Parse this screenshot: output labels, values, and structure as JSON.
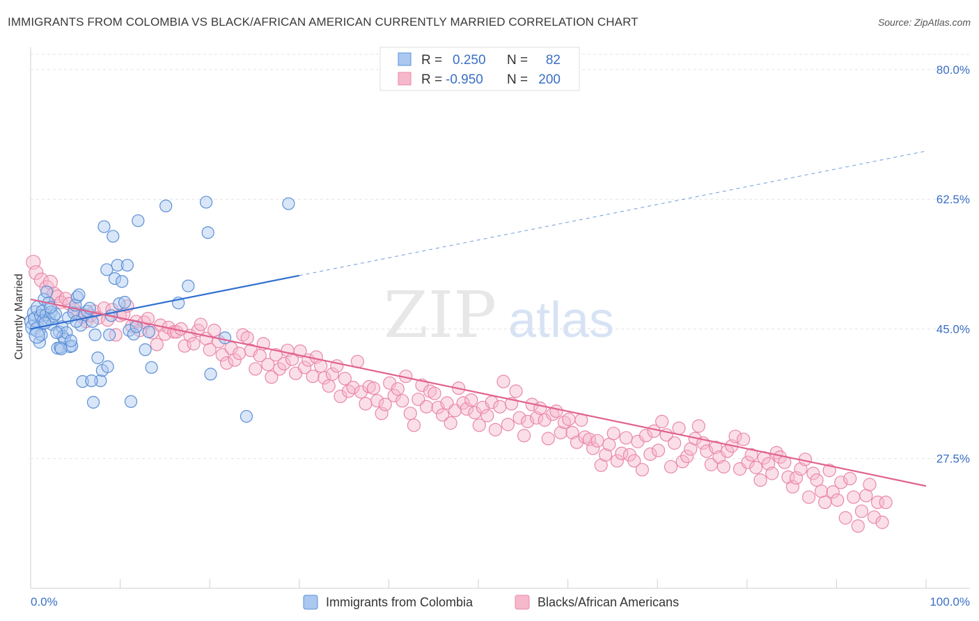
{
  "header": {
    "title": "IMMIGRANTS FROM COLOMBIA VS BLACK/AFRICAN AMERICAN CURRENTLY MARRIED CORRELATION CHART",
    "source": "Source: ZipAtlas.com"
  },
  "watermark": {
    "zip": "ZIP",
    "atlas": "atlas"
  },
  "legend": {
    "r_label": "R =",
    "n_label": "N =",
    "rows": [
      {
        "r": "0.250",
        "n": "82"
      },
      {
        "r": "-0.950",
        "n": "200"
      }
    ]
  },
  "bottom_legend": [
    "Immigrants from Colombia",
    "Blacks/African Americans"
  ],
  "colors": {
    "blue_fill": "#aac8f0",
    "blue_stroke": "#5b8fd6",
    "blue_line": "#2f6fd0",
    "pink_fill": "#f6b8cb",
    "pink_stroke": "#e987a8",
    "pink_line": "#e0628e"
  },
  "chart_data": {
    "type": "scatter",
    "title": "IMMIGRANTS FROM COLOMBIA VS BLACK/AFRICAN AMERICAN CURRENTLY MARRIED CORRELATION CHART",
    "xlabel": "",
    "ylabel": "Currently Married",
    "x_tick_labels": [
      "0.0%",
      "100.0%"
    ],
    "y_tick_labels": [
      "80.0%",
      "62.5%",
      "45.0%",
      "27.5%"
    ],
    "y_ticks": [
      80.0,
      62.5,
      45.0,
      27.5
    ],
    "xlim": [
      0,
      100
    ],
    "ylim": [
      10,
      83
    ],
    "grid": true,
    "legend_position": "top-center",
    "series": [
      {
        "name": "Immigrants from Colombia",
        "r": 0.25,
        "n": 82,
        "trend": {
          "x0": 0,
          "y0": 45.0,
          "x1": 30,
          "y1": 52.2,
          "dashed_to_x": 100,
          "dashed_to_y": 69.0
        },
        "points": [
          [
            0.2,
            46
          ],
          [
            0.3,
            45.2
          ],
          [
            0.5,
            47.1
          ],
          [
            0.6,
            46.3
          ],
          [
            0.8,
            44.9
          ],
          [
            0.9,
            47.8
          ],
          [
            1.0,
            43.2
          ],
          [
            1.1,
            46.8
          ],
          [
            1.2,
            44.2
          ],
          [
            1.3,
            47.4
          ],
          [
            1.4,
            46.1
          ],
          [
            1.5,
            49.0
          ],
          [
            1.7,
            46.9
          ],
          [
            1.8,
            50.0
          ],
          [
            2.0,
            48.5
          ],
          [
            2.1,
            46.4
          ],
          [
            2.3,
            47.3
          ],
          [
            2.4,
            45.6
          ],
          [
            2.6,
            46.7
          ],
          [
            2.8,
            47.0
          ],
          [
            3.0,
            42.4
          ],
          [
            3.2,
            44.6
          ],
          [
            3.3,
            42.5
          ],
          [
            3.5,
            45.3
          ],
          [
            3.6,
            44.0
          ],
          [
            3.8,
            43.6
          ],
          [
            4.0,
            44.5
          ],
          [
            4.2,
            46.5
          ],
          [
            4.4,
            42.6
          ],
          [
            4.6,
            42.7
          ],
          [
            4.8,
            47.2
          ],
          [
            5.0,
            48.2
          ],
          [
            5.2,
            49.3
          ],
          [
            5.4,
            49.6
          ],
          [
            5.6,
            45.5
          ],
          [
            5.8,
            37.9
          ],
          [
            6.0,
            46.9
          ],
          [
            6.3,
            47.4
          ],
          [
            6.6,
            47.8
          ],
          [
            6.9,
            46.0
          ],
          [
            7.2,
            44.2
          ],
          [
            7.5,
            41.1
          ],
          [
            7.8,
            38.0
          ],
          [
            8.0,
            39.4
          ],
          [
            8.2,
            58.8
          ],
          [
            8.5,
            53.0
          ],
          [
            8.8,
            44.2
          ],
          [
            9.0,
            46.8
          ],
          [
            9.2,
            57.5
          ],
          [
            9.4,
            51.8
          ],
          [
            9.7,
            53.6
          ],
          [
            9.9,
            48.4
          ],
          [
            10.2,
            51.4
          ],
          [
            10.5,
            48.6
          ],
          [
            10.8,
            53.6
          ],
          [
            11.0,
            44.8
          ],
          [
            11.2,
            35.2
          ],
          [
            11.5,
            44.3
          ],
          [
            12.0,
            59.6
          ],
          [
            12.8,
            42.2
          ],
          [
            13.5,
            39.8
          ],
          [
            15.1,
            61.6
          ],
          [
            16.5,
            48.5
          ],
          [
            17.6,
            50.8
          ],
          [
            19.6,
            62.1
          ],
          [
            19.8,
            58.0
          ],
          [
            20.1,
            38.9
          ],
          [
            24.1,
            33.2
          ],
          [
            28.8,
            61.9
          ],
          [
            7.0,
            35.1
          ],
          [
            3.4,
            42.3
          ],
          [
            2.9,
            44.5
          ],
          [
            6.8,
            38.0
          ],
          [
            5.1,
            46.0
          ],
          [
            4.5,
            43.4
          ],
          [
            1.6,
            45.8
          ],
          [
            0.7,
            44.1
          ],
          [
            2.2,
            47.9
          ],
          [
            8.6,
            39.9
          ],
          [
            11.8,
            45.3
          ],
          [
            13.2,
            44.6
          ],
          [
            21.7,
            43.8
          ]
        ]
      },
      {
        "name": "Blacks/African Americans",
        "r": -0.95,
        "n": 200,
        "trend": {
          "x0": 0,
          "y0": 49.0,
          "x1": 100,
          "y1": 23.8
        },
        "points": [
          [
            0.3,
            54.0
          ],
          [
            0.6,
            52.6
          ],
          [
            1.2,
            51.6
          ],
          [
            1.8,
            50.6
          ],
          [
            2.2,
            51.3
          ],
          [
            2.6,
            49.7
          ],
          [
            3.0,
            49.4
          ],
          [
            3.4,
            48.6
          ],
          [
            3.9,
            49.1
          ],
          [
            4.3,
            48.4
          ],
          [
            4.9,
            47.6
          ],
          [
            5.3,
            47.1
          ],
          [
            5.8,
            46.6
          ],
          [
            6.2,
            46.0
          ],
          [
            6.7,
            46.8
          ],
          [
            7.1,
            47.4
          ],
          [
            7.6,
            46.5
          ],
          [
            8.2,
            47.8
          ],
          [
            8.6,
            46.2
          ],
          [
            9.1,
            47.6
          ],
          [
            9.5,
            44.2
          ],
          [
            10.0,
            46.8
          ],
          [
            10.4,
            47.0
          ],
          [
            10.8,
            48.1
          ],
          [
            11.3,
            45.4
          ],
          [
            11.8,
            46.0
          ],
          [
            12.2,
            44.8
          ],
          [
            12.7,
            45.9
          ],
          [
            13.1,
            46.4
          ],
          [
            13.6,
            44.5
          ],
          [
            14.1,
            42.9
          ],
          [
            14.5,
            45.5
          ],
          [
            15.0,
            44.3
          ],
          [
            15.4,
            45.2
          ],
          [
            16.0,
            44.6
          ],
          [
            16.3,
            44.6
          ],
          [
            16.8,
            45.0
          ],
          [
            17.2,
            42.7
          ],
          [
            17.8,
            44.1
          ],
          [
            18.2,
            43.0
          ],
          [
            18.7,
            44.8
          ],
          [
            19.0,
            45.6
          ],
          [
            19.6,
            43.7
          ],
          [
            20.0,
            42.2
          ],
          [
            20.5,
            44.8
          ],
          [
            21.0,
            43.3
          ],
          [
            21.4,
            41.5
          ],
          [
            21.9,
            40.4
          ],
          [
            22.4,
            42.4
          ],
          [
            22.8,
            40.8
          ],
          [
            23.3,
            41.7
          ],
          [
            23.7,
            44.2
          ],
          [
            24.2,
            43.8
          ],
          [
            24.6,
            42.1
          ],
          [
            25.1,
            39.6
          ],
          [
            25.6,
            41.4
          ],
          [
            26.0,
            43.0
          ],
          [
            26.5,
            40.2
          ],
          [
            26.9,
            38.5
          ],
          [
            27.4,
            41.5
          ],
          [
            27.8,
            39.6
          ],
          [
            28.3,
            40.3
          ],
          [
            28.7,
            42.1
          ],
          [
            29.2,
            40.9
          ],
          [
            29.6,
            39.0
          ],
          [
            30.1,
            42.0
          ],
          [
            30.6,
            39.8
          ],
          [
            31.0,
            40.8
          ],
          [
            31.5,
            38.6
          ],
          [
            31.9,
            41.2
          ],
          [
            32.4,
            40.0
          ],
          [
            32.8,
            38.4
          ],
          [
            33.3,
            37.3
          ],
          [
            33.7,
            38.9
          ],
          [
            34.2,
            40.0
          ],
          [
            34.6,
            35.9
          ],
          [
            35.1,
            38.3
          ],
          [
            35.5,
            36.6
          ],
          [
            36.0,
            37.1
          ],
          [
            36.5,
            40.6
          ],
          [
            36.9,
            36.5
          ],
          [
            37.4,
            34.9
          ],
          [
            37.8,
            37.2
          ],
          [
            38.3,
            37.0
          ],
          [
            38.7,
            35.3
          ],
          [
            39.2,
            33.6
          ],
          [
            39.6,
            34.8
          ],
          [
            40.1,
            37.7
          ],
          [
            40.6,
            36.0
          ],
          [
            41.0,
            36.9
          ],
          [
            41.5,
            35.3
          ],
          [
            41.9,
            38.6
          ],
          [
            42.4,
            33.6
          ],
          [
            42.8,
            32.0
          ],
          [
            43.3,
            35.5
          ],
          [
            43.7,
            37.4
          ],
          [
            44.2,
            34.5
          ],
          [
            44.6,
            36.6
          ],
          [
            45.1,
            36.3
          ],
          [
            45.5,
            34.4
          ],
          [
            46.0,
            33.4
          ],
          [
            46.5,
            35.0
          ],
          [
            46.9,
            32.3
          ],
          [
            47.4,
            34.0
          ],
          [
            47.8,
            37.0
          ],
          [
            48.3,
            35.0
          ],
          [
            48.7,
            34.2
          ],
          [
            49.2,
            35.4
          ],
          [
            49.6,
            33.7
          ],
          [
            50.1,
            32.0
          ],
          [
            50.5,
            34.4
          ],
          [
            51.0,
            33.3
          ],
          [
            51.5,
            35.1
          ],
          [
            51.9,
            31.4
          ],
          [
            52.4,
            34.5
          ],
          [
            52.8,
            37.9
          ],
          [
            53.3,
            32.1
          ],
          [
            53.7,
            34.9
          ],
          [
            54.2,
            36.6
          ],
          [
            54.6,
            33.0
          ],
          [
            55.1,
            30.6
          ],
          [
            55.5,
            32.5
          ],
          [
            56.0,
            34.8
          ],
          [
            56.5,
            33.0
          ],
          [
            56.9,
            34.3
          ],
          [
            57.4,
            32.7
          ],
          [
            57.8,
            30.2
          ],
          [
            58.3,
            33.5
          ],
          [
            58.7,
            33.9
          ],
          [
            59.2,
            31.0
          ],
          [
            59.6,
            32.4
          ],
          [
            60.1,
            32.8
          ],
          [
            60.5,
            31.0
          ],
          [
            61.0,
            29.7
          ],
          [
            61.5,
            32.7
          ],
          [
            61.9,
            30.4
          ],
          [
            62.4,
            30.1
          ],
          [
            62.8,
            28.9
          ],
          [
            63.3,
            29.9
          ],
          [
            63.7,
            26.6
          ],
          [
            64.2,
            28.0
          ],
          [
            64.6,
            29.4
          ],
          [
            65.1,
            30.9
          ],
          [
            65.5,
            27.2
          ],
          [
            66.0,
            28.2
          ],
          [
            66.5,
            30.3
          ],
          [
            66.9,
            28.0
          ],
          [
            67.4,
            27.2
          ],
          [
            67.8,
            29.8
          ],
          [
            68.3,
            26.0
          ],
          [
            68.7,
            30.6
          ],
          [
            69.2,
            28.1
          ],
          [
            69.6,
            31.2
          ],
          [
            70.1,
            28.6
          ],
          [
            70.5,
            32.5
          ],
          [
            71.0,
            30.7
          ],
          [
            71.5,
            26.4
          ],
          [
            71.9,
            29.6
          ],
          [
            72.4,
            31.6
          ],
          [
            72.8,
            27.1
          ],
          [
            73.3,
            27.8
          ],
          [
            73.7,
            28.8
          ],
          [
            74.2,
            30.2
          ],
          [
            74.6,
            31.9
          ],
          [
            75.1,
            29.6
          ],
          [
            75.5,
            28.5
          ],
          [
            76.0,
            26.7
          ],
          [
            76.5,
            29.0
          ],
          [
            76.9,
            27.7
          ],
          [
            77.4,
            26.4
          ],
          [
            77.8,
            28.5
          ],
          [
            78.3,
            29.2
          ],
          [
            78.7,
            30.5
          ],
          [
            79.2,
            26.1
          ],
          [
            79.6,
            30.1
          ],
          [
            80.1,
            27.0
          ],
          [
            80.5,
            28.0
          ],
          [
            81.0,
            26.3
          ],
          [
            81.5,
            24.6
          ],
          [
            81.9,
            27.6
          ],
          [
            82.4,
            26.8
          ],
          [
            82.8,
            25.5
          ],
          [
            83.3,
            28.3
          ],
          [
            83.7,
            27.7
          ],
          [
            84.2,
            27.0
          ],
          [
            84.6,
            25.0
          ],
          [
            85.1,
            23.7
          ],
          [
            85.5,
            24.9
          ],
          [
            86.0,
            26.1
          ],
          [
            86.5,
            27.4
          ],
          [
            86.9,
            22.3
          ],
          [
            87.4,
            25.5
          ],
          [
            87.8,
            24.6
          ],
          [
            88.3,
            23.1
          ],
          [
            88.7,
            21.6
          ],
          [
            89.2,
            25.9
          ],
          [
            89.6,
            23.0
          ],
          [
            90.1,
            21.9
          ],
          [
            90.5,
            24.3
          ],
          [
            91.0,
            19.5
          ],
          [
            91.5,
            24.8
          ],
          [
            91.9,
            22.3
          ],
          [
            92.4,
            18.4
          ],
          [
            92.8,
            20.4
          ],
          [
            93.3,
            22.5
          ],
          [
            93.7,
            24.0
          ],
          [
            94.2,
            19.6
          ],
          [
            94.6,
            21.6
          ],
          [
            95.1,
            18.9
          ],
          [
            95.5,
            21.6
          ]
        ]
      }
    ]
  }
}
